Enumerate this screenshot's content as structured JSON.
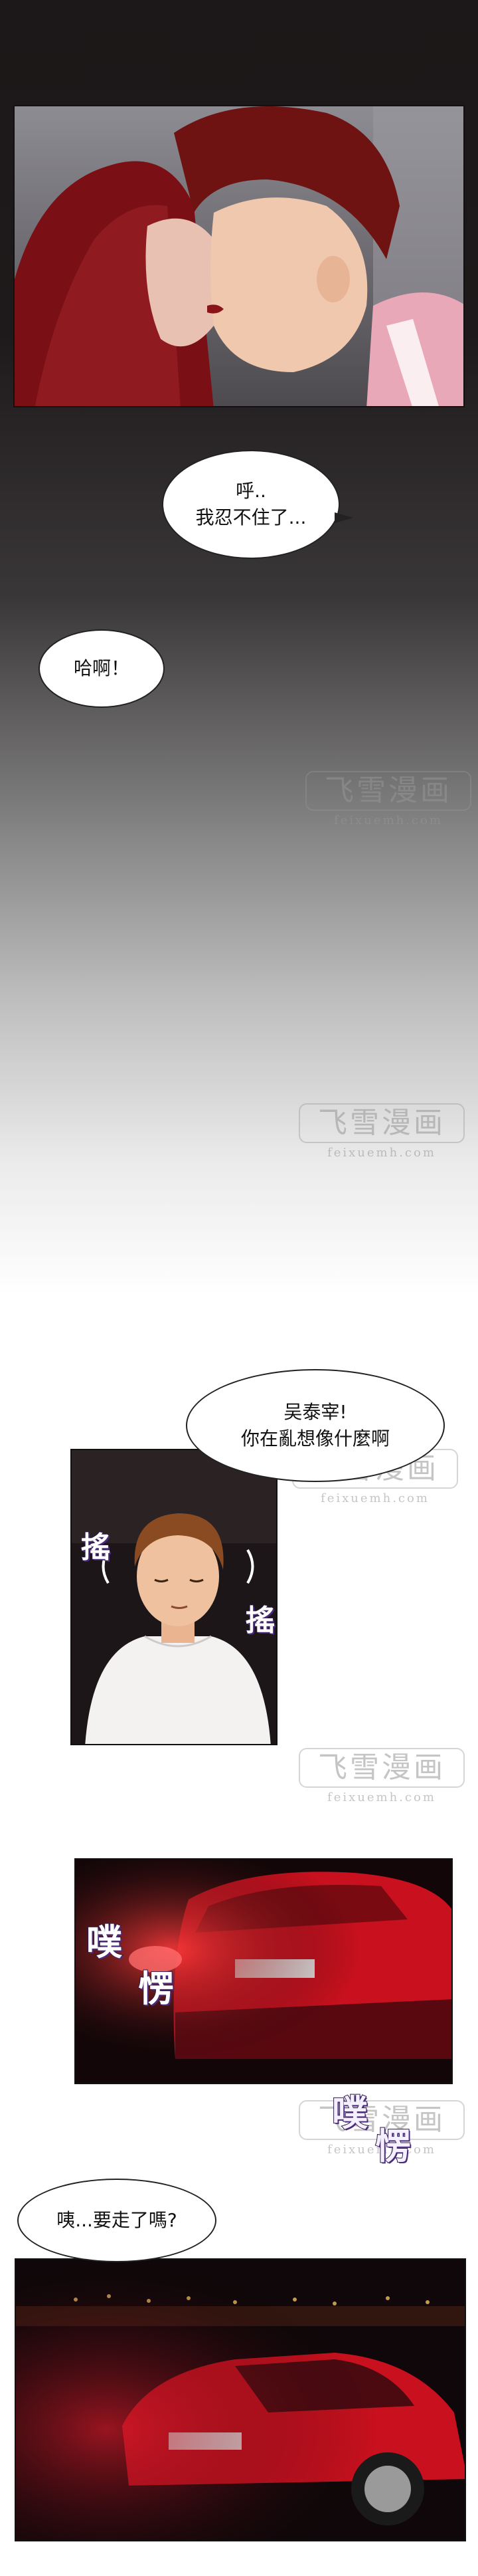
{
  "dialogues": {
    "huh": {
      "line1": "呼..",
      "line2": "我忍不住了..."
    },
    "haa": "哈啊！",
    "wu": {
      "line1": "吴泰宰!",
      "line2": "你在亂想像什麼啊"
    },
    "leave": "咦...要走了嗎?"
  },
  "sfx": {
    "shake_left": "搖",
    "shake_right": "搖",
    "puff1": "噗",
    "puff1b": "愣",
    "puff2": "噗",
    "puff2b": "愣"
  },
  "watermark": {
    "main": "飞雪漫画",
    "sub": "feixuemh.com"
  },
  "colors": {
    "car_red": "#c8101e",
    "night_dark": "#120608",
    "lip_red": "#8a1418"
  }
}
